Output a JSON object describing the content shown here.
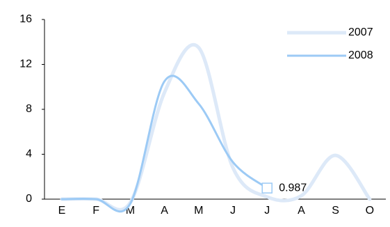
{
  "chart_data": {
    "type": "line",
    "smooth": true,
    "categories": [
      "E",
      "F",
      "M",
      "A",
      "M",
      "J",
      "J",
      "A",
      "S",
      "O"
    ],
    "series": [
      {
        "name": "2007",
        "color": "#dde9f8",
        "values": [
          0,
          0,
          -0.3,
          9.5,
          13.5,
          2.8,
          0.2,
          0.3,
          3.9,
          0
        ]
      },
      {
        "name": "2008",
        "color": "#9ccaf5",
        "values": [
          0,
          0,
          -0.4,
          10.5,
          8.5,
          3.3,
          0.987,
          null,
          null,
          null
        ],
        "value_labels": [
          null,
          null,
          null,
          null,
          null,
          null,
          "0.987",
          null,
          null,
          null
        ]
      }
    ],
    "ylim": [
      -0.5,
      16
    ],
    "yticks": [
      0,
      4,
      8,
      12,
      16
    ],
    "grid": false,
    "legend": "top-right"
  }
}
